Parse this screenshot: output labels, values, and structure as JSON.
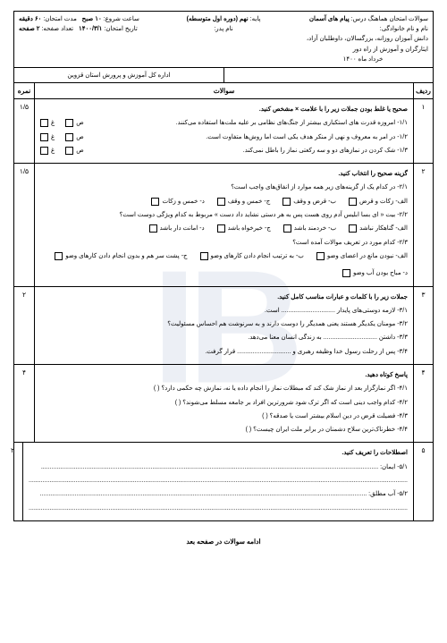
{
  "watermark": "IB",
  "header": {
    "right": {
      "line1_label": "سوالات امتحان هماهنگ درس:",
      "line1_value": "پیام های آسمان",
      "line2_label": "نام و نام خانوادگی:",
      "line3": "دانش آموزان روزانه، بزرگسالان، داوطلبان آزاد، ایثارگران و آموزش از راه دور",
      "line4": "خرداد ماه ۱۴۰۰"
    },
    "middle": {
      "line1_label": "پایه:",
      "line1_value": "نهم (دوره اول متوسطه)",
      "line2_label": "نام پدر:"
    },
    "left": {
      "line1_label": "ساعت شروع:",
      "line1_value": "۱۰ صبح",
      "line2_label": "تاریخ امتحان:",
      "line2_value": "۱۴۰۰/۳/۱",
      "line3_label": "مدت امتحان:",
      "line3_value": "۶۰ دقیقه",
      "line4_label": "تعداد صفحه:",
      "line4_value": "۲ صفحه"
    }
  },
  "header_row2": {
    "right": "",
    "left": "اداره کل آموزش و پرورش استان قزوین"
  },
  "table_head": {
    "num": "ردیف",
    "body": "سوالات",
    "score": "نمره"
  },
  "labels": {
    "correct": "ص",
    "wrong": "غ"
  },
  "questions": [
    {
      "num": "۱",
      "score": "۱/۵",
      "title": "صحیح یا غلط بودن جملات زیر را با علامت × مشخص کنید.",
      "items": [
        "۱/۱- امروزه قدرت های استکباری بیشتر از جنگ‌های نظامی بر علیه ملت‌ها استفاده می‌کنند.",
        "۱/۲- در امر به معروف و نهی از منکر هدف یکی است اما روش‌ها متفاوت است.",
        "۱/۳- شک کردن در نمازهای دو و سه رکعتی نماز را باطل نمی‌کند."
      ],
      "has_tf": true
    },
    {
      "num": "۲",
      "score": "۱/۵",
      "title": "گزینه صحیح را انتخاب کنید.",
      "subs": [
        {
          "q": "۲/۱- در کدام یک از گزینه‌های زیر همه موارد از انفاق‌های واجب است؟",
          "opts": [
            "الف- زکات و قرض",
            "ب- قرض و وقف",
            "ج- خمس و وقف",
            "د- خمس و زکات"
          ]
        },
        {
          "q": "۲/۲- بیت « ای بسا ابلیس آدم روی هست      پس به هر دستی نشاید داد دست » مربوط به کدام ویژگی دوست است؟",
          "opts": [
            "الف- گناهکار نباشد",
            "ب- خردمند باشد",
            "ج- خیرخواه باشد",
            "د- امانت دار باشد"
          ]
        },
        {
          "q": "۲/۳- کدام مورد در تعریف موالات آمده است؟",
          "opts": [
            "الف- نبودن مانع در اعضای وضو",
            "ب- به ترتیب انجام دادن کارهای وضو",
            "ج- پشت سر هم و بدون انجام دادن کارهای وضو",
            "د- مباح بودن آب وضو"
          ]
        }
      ]
    },
    {
      "num": "۳",
      "score": "۲",
      "title": "جملات زیر را با کلمات و عبارات مناسب کامل کنید.",
      "items": [
        "۳/۱- لازمه دوستی‌های پایدار ............................... است.",
        "۳/۲- مومنان یکدیگر هستند یعنی همدیگر را دوست دارند و به سرنوشت هم احساس مسئولیت؟",
        "۳/۳- داشتن ............................... به زندگی انسان معنا می‌دهد.",
        "۳/۴- پس از رحلت رسول خدا وظیفه رهبری و ............................... قرار گرفت."
      ]
    },
    {
      "num": "۴",
      "score": "۴",
      "title": "پاسخ کوتاه دهید.",
      "items": [
        "۴/۱- اگر نمازگزار بعد از نماز شک کند که مبطلات نماز را انجام داده یا نه، نمازش چه حکمی دارد؟ (       )",
        "۴/۲- کدام واجب دینی است که اگر ترک شود شرورترین افراد بر جامعه مسلط می‌شوند؟ (       )",
        "۴/۳- فضیلت قرض در دین اسلام بیشتر است یا صدقه؟ (       )",
        "۴/۴- خطرناک‌ترین سلاح دشمنان در برابر ملت ایران چیست؟ (       )"
      ]
    },
    {
      "num": "۵",
      "score": "۲",
      "title": "اصطلاحات را تعریف کنید.",
      "items": [
        "۵/۱- ایمان: ..................................................................................................................................................................................................",
        "..........................................................................................................................................................................................................................",
        "۵/۲- آب مطلق: ............................................................................................................................................................................................",
        ".........................................................................................................................................................................................................................."
      ]
    }
  ],
  "footer": "ادامه سوالات در صفحه بعد"
}
